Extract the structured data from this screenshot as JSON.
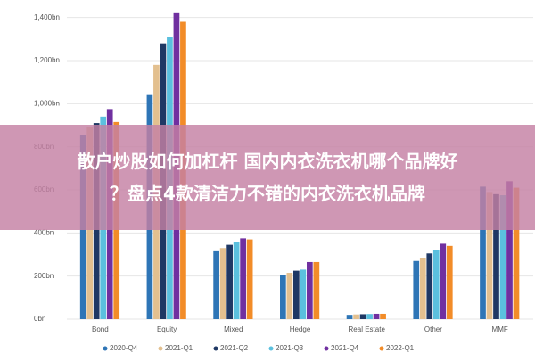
{
  "chart_data": {
    "type": "bar",
    "categories": [
      "Bond",
      "Equity",
      "Mixed",
      "Hedge",
      "Real Estate",
      "Other",
      "MMF"
    ],
    "series": [
      {
        "name": "2020-Q4",
        "color": "#2e75b6",
        "values": [
          855,
          1040,
          315,
          205,
          20,
          270,
          615
        ]
      },
      {
        "name": "2021-Q1",
        "color": "#e3c08f",
        "values": [
          890,
          1180,
          330,
          215,
          22,
          285,
          590
        ]
      },
      {
        "name": "2021-Q2",
        "color": "#1f3864",
        "values": [
          910,
          1280,
          345,
          225,
          23,
          305,
          580
        ]
      },
      {
        "name": "2021-Q3",
        "color": "#5bc0de",
        "values": [
          940,
          1310,
          360,
          230,
          24,
          320,
          575
        ]
      },
      {
        "name": "2021-Q4",
        "color": "#7030a0",
        "values": [
          975,
          1420,
          375,
          265,
          25,
          350,
          640
        ]
      },
      {
        "name": "2022-Q1",
        "color": "#f28c28",
        "values": [
          915,
          1380,
          370,
          265,
          25,
          340,
          610
        ]
      }
    ],
    "ylim": [
      0,
      1440
    ],
    "yticks": [
      {
        "value": 0,
        "label": "0bn"
      },
      {
        "value": 200,
        "label": "200bn"
      },
      {
        "value": 400,
        "label": "400bn"
      },
      {
        "value": 600,
        "label": "600bn"
      },
      {
        "value": 800,
        "label": "800bn"
      },
      {
        "value": 1000,
        "label": "1,000bn"
      },
      {
        "value": 1200,
        "label": "1,200bn"
      },
      {
        "value": 1400,
        "label": "1,400bn"
      }
    ],
    "grid": true
  },
  "overlay": {
    "lines": [
      "散户炒股如何加杠杆 国内内衣洗衣机哪个品牌好",
      "？盘点4款清洁力不错的内衣洗衣机品牌"
    ]
  }
}
